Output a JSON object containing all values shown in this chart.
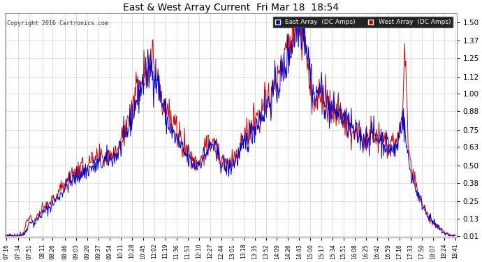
{
  "title": "East & West Array Current  Fri Mar 18  18:54",
  "copyright": "Copyright 2016 Cartronics.com",
  "east_label": "East Array  (DC Amps)",
  "west_label": "West Array  (DC Amps)",
  "east_color": "#0000cc",
  "west_color": "#cc0000",
  "bg_color": "#ffffff",
  "grid_color": "#bbbbbb",
  "yticks": [
    0.01,
    0.13,
    0.25,
    0.38,
    0.5,
    0.63,
    0.75,
    0.88,
    1.0,
    1.12,
    1.25,
    1.37,
    1.5
  ],
  "ylim": [
    0.0,
    1.56
  ],
  "xtick_labels": [
    "07:16",
    "07:34",
    "07:51",
    "08:11",
    "08:26",
    "08:46",
    "09:03",
    "09:20",
    "09:37",
    "09:54",
    "10:11",
    "10:28",
    "10:45",
    "11:02",
    "11:19",
    "11:36",
    "11:53",
    "12:10",
    "12:27",
    "12:44",
    "13:01",
    "13:18",
    "13:35",
    "13:52",
    "14:09",
    "14:26",
    "14:43",
    "15:00",
    "15:17",
    "15:34",
    "15:51",
    "16:08",
    "16:25",
    "16:42",
    "16:59",
    "17:16",
    "17:33",
    "17:50",
    "18:07",
    "18:24",
    "18:41"
  ]
}
